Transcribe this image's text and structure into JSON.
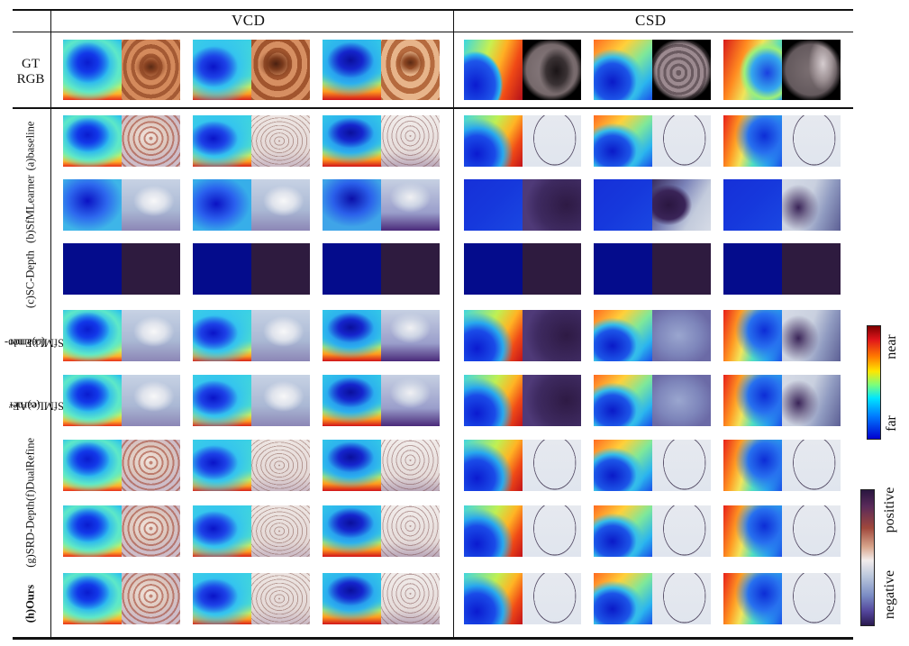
{
  "header": {
    "group_left": "VCD",
    "group_right": "CSD"
  },
  "gt_label": [
    "GT",
    "RGB"
  ],
  "rows": [
    {
      "label": "(a)baseline"
    },
    {
      "label": "(b)SfMLearner"
    },
    {
      "label": "(c)SC-Depth"
    },
    {
      "label": "(d)Endo-SfMLearner",
      "lines": [
        "(d)Endo-",
        "SfMLearner"
      ]
    },
    {
      "label": "(e)AF-SfMLearner",
      "lines": [
        "(e)AF-",
        "SfMLearner"
      ]
    },
    {
      "label": "(f)DualRefine"
    },
    {
      "label": "(g)SRD-Depth"
    },
    {
      "label": "(h)Ours"
    }
  ],
  "legend_depth": {
    "top": "near",
    "bottom": "far"
  },
  "legend_error": {
    "top": "positive",
    "bottom": "negative"
  }
}
